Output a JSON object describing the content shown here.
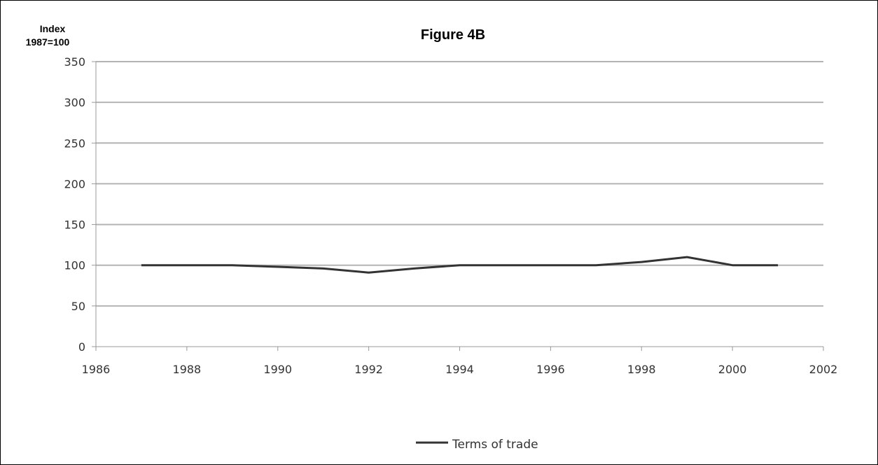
{
  "chart_data": {
    "type": "line",
    "title": "Figure 4B",
    "ylabel_line1": "Index",
    "ylabel_line2": "1987=100",
    "xlabel": "",
    "xlim": [
      1986,
      2002
    ],
    "ylim": [
      0,
      350
    ],
    "x_ticks": [
      "1986",
      "1988",
      "1990",
      "1992",
      "1994",
      "1996",
      "1998",
      "2000",
      "2002"
    ],
    "y_ticks": [
      "0",
      "50",
      "100",
      "150",
      "200",
      "250",
      "300",
      "350"
    ],
    "grid": "horizontal",
    "legend_position": "bottom",
    "series": [
      {
        "name": "Terms of trade",
        "color": "#333333",
        "x": [
          1987,
          1988,
          1989,
          1990,
          1991,
          1992,
          1993,
          1994,
          1995,
          1996,
          1997,
          1998,
          1999,
          2000,
          2001
        ],
        "y": [
          100,
          100,
          100,
          98,
          96,
          91,
          96,
          100,
          100,
          100,
          100,
          104,
          110,
          100,
          100
        ]
      }
    ]
  }
}
